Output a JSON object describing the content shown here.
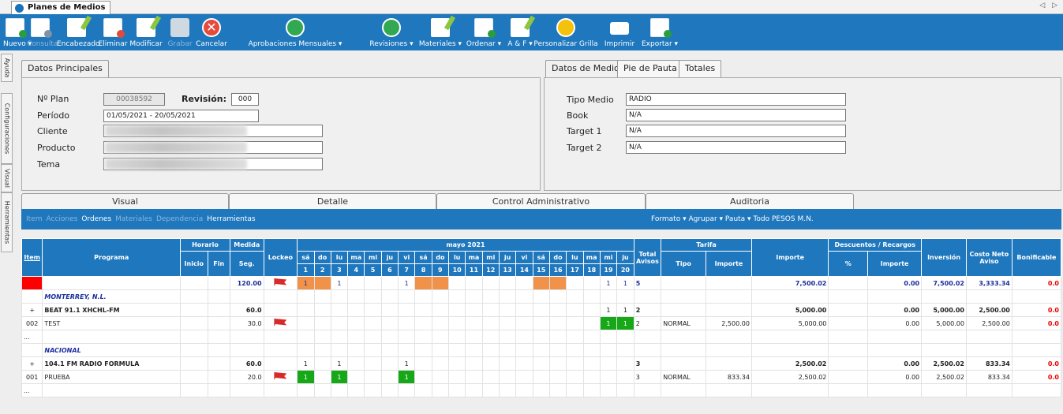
{
  "window": {
    "tab_title": "Planes de Medios",
    "nav": "◁ ▷"
  },
  "ribbon": [
    {
      "label": "Nuevo ▾",
      "icon": "new-doc-icon",
      "disabled": false
    },
    {
      "label": "Consulta",
      "icon": "query-doc-icon",
      "disabled": true
    },
    {
      "label": "Encabezado",
      "icon": "edit-header-icon",
      "disabled": false
    },
    {
      "label": "Eliminar",
      "icon": "delete-doc-icon",
      "disabled": false
    },
    {
      "label": "Modificar",
      "icon": "edit-icon",
      "disabled": false
    },
    {
      "label": "Grabar",
      "icon": "save-icon",
      "disabled": true
    },
    {
      "label": "Cancelar",
      "icon": "cancel-icon",
      "disabled": false
    },
    {
      "label": "Aprobaciones Mensuales ▾",
      "icon": "thumbs-up-icon",
      "disabled": false
    },
    {
      "label": "Revisiones ▾",
      "icon": "thumbs-up-icon",
      "disabled": false
    },
    {
      "label": "Materiales ▾",
      "icon": "edit-icon",
      "disabled": false
    },
    {
      "label": "Ordenar ▾",
      "icon": "add-doc-icon",
      "disabled": false
    },
    {
      "label": "A & F ▾",
      "icon": "edit-icon",
      "disabled": false
    },
    {
      "label": "Personalizar Grilla",
      "icon": "globe-icon",
      "disabled": false
    },
    {
      "label": "Imprimir",
      "icon": "printer-icon",
      "disabled": false
    },
    {
      "label": "Exportar ▾",
      "icon": "export-icon",
      "disabled": false
    }
  ],
  "side_tabs": [
    "Ayuda",
    "Configuraciones",
    "Visual",
    "Herramientas"
  ],
  "datos_principales": {
    "tab": "Datos Principales",
    "nplan_label": "Nº Plan",
    "nplan": "00038592",
    "revision_label": "Revisión:",
    "revision": "000",
    "periodo_label": "Período",
    "periodo": "01/05/2021 - 20/05/2021",
    "cliente_label": "Cliente",
    "producto_label": "Producto",
    "tema_label": "Tema"
  },
  "datos_medio": {
    "tabs": [
      "Datos de Medio",
      "Pie de Pauta",
      "Totales"
    ],
    "tipo_label": "Tipo Medio",
    "tipo": "RADIO",
    "book_label": "Book",
    "book": "N/A",
    "t1_label": "Target 1",
    "t1": "N/A",
    "t2_label": "Target 2",
    "t2": "N/A"
  },
  "view_tabs": [
    "Visual",
    "Detalle",
    "Control Administrativo",
    "Auditoria"
  ],
  "toolbar2": {
    "left": [
      {
        "t": "Item",
        "dim": true
      },
      {
        "t": "Acciones",
        "dim": true
      },
      {
        "t": "Ordenes",
        "dim": false
      },
      {
        "t": "Materiales",
        "dim": true
      },
      {
        "t": "Dependencia",
        "dim": true
      },
      {
        "t": "Herramientas",
        "dim": false
      }
    ],
    "right": "Formato ▾  Agrupar ▾  Pauta ▾  Todo  PESOS M.N."
  },
  "grid": {
    "headers": {
      "item": "Item",
      "programa": "Programa",
      "horario": "Horario",
      "inicio": "Inicio",
      "fin": "Fin",
      "medida": "Medida",
      "seg": "Seg.",
      "lockeo": "Lockeo",
      "month": "mayo 2021",
      "total": "Total Avisos",
      "tarifa": "Tarifa",
      "tipo": "Tipo",
      "importe_t": "Importe",
      "importe": "Importe",
      "desc": "Descuentos / Recargos",
      "pct": "%",
      "importe_d": "Importe",
      "inversion": "Inversión",
      "costo": "Costo Neto Aviso",
      "bonif": "Bonificable"
    },
    "days": [
      "sá",
      "do",
      "lu",
      "ma",
      "mi",
      "ju",
      "vi",
      "sá",
      "do",
      "lu",
      "ma",
      "mi",
      "ju",
      "vi",
      "sá",
      "do",
      "lu",
      "ma",
      "mi",
      "ju"
    ],
    "dates": [
      "1",
      "2",
      "3",
      "4",
      "5",
      "6",
      "7",
      "8",
      "9",
      "10",
      "11",
      "12",
      "13",
      "14",
      "15",
      "16",
      "17",
      "18",
      "19",
      "20"
    ],
    "rows": [
      {
        "kind": "total",
        "item": "",
        "programa": "",
        "seg": "120.00",
        "flag": true,
        "cells": {
          "1": "1",
          "2": "",
          "3": "1",
          "7": "1",
          "8": "",
          "9": "",
          "15": "",
          "16": "",
          "19": "1",
          "20": "1"
        },
        "orange": [
          1,
          2,
          8,
          9,
          15,
          16
        ],
        "total": "5",
        "tipo": "",
        "importe_t": "",
        "importe": "7,500.02",
        "pct": "",
        "importe_d": "0.00",
        "inversion": "7,500.02",
        "costo": "3,333.34",
        "bonif": "0.0"
      },
      {
        "kind": "group",
        "programa": "MONTERREY, N.L."
      },
      {
        "kind": "sub",
        "item": "+",
        "programa": "BEAT 91.1 XHCHL-FM",
        "seg": "60.0",
        "flag": false,
        "cells": {
          "19": "1",
          "20": "1"
        },
        "total": "2",
        "tipo": "",
        "importe_t": "",
        "importe": "5,000.00",
        "pct": "",
        "importe_d": "0.00",
        "inversion": "5,000.00",
        "costo": "2,500.00",
        "bonif": "0.0"
      },
      {
        "kind": "detail",
        "item": "002",
        "programa": "TEST",
        "seg": "30.0",
        "flag": true,
        "cells": {
          "19": "1",
          "20": "1"
        },
        "green": [
          19,
          20
        ],
        "total": "2",
        "tipo": "NORMAL",
        "importe_t": "2,500.00",
        "importe": "5,000.00",
        "pct": "",
        "importe_d": "0.00",
        "inversion": "5,000.00",
        "costo": "2,500.00",
        "bonif": "0.0"
      },
      {
        "kind": "blank",
        "item": "..."
      },
      {
        "kind": "group",
        "programa": "NACIONAL"
      },
      {
        "kind": "sub",
        "item": "+",
        "programa": "104.1 FM RADIO FORMULA",
        "seg": "60.0",
        "flag": false,
        "cells": {
          "1": "1",
          "3": "1",
          "7": "1"
        },
        "total": "3",
        "tipo": "",
        "importe_t": "",
        "importe": "2,500.02",
        "pct": "",
        "importe_d": "0.00",
        "inversion": "2,500.02",
        "costo": "833.34",
        "bonif": "0.0"
      },
      {
        "kind": "detail",
        "item": "001",
        "programa": "PRUEBA",
        "seg": "20.0",
        "flag": true,
        "cells": {
          "1": "1",
          "3": "1",
          "7": "1"
        },
        "green": [
          1,
          3,
          7
        ],
        "total": "3",
        "tipo": "NORMAL",
        "importe_t": "833.34",
        "importe": "2,500.02",
        "pct": "",
        "importe_d": "0.00",
        "inversion": "2,500.02",
        "costo": "833.34",
        "bonif": "0.0"
      },
      {
        "kind": "blank",
        "item": "..."
      }
    ]
  }
}
